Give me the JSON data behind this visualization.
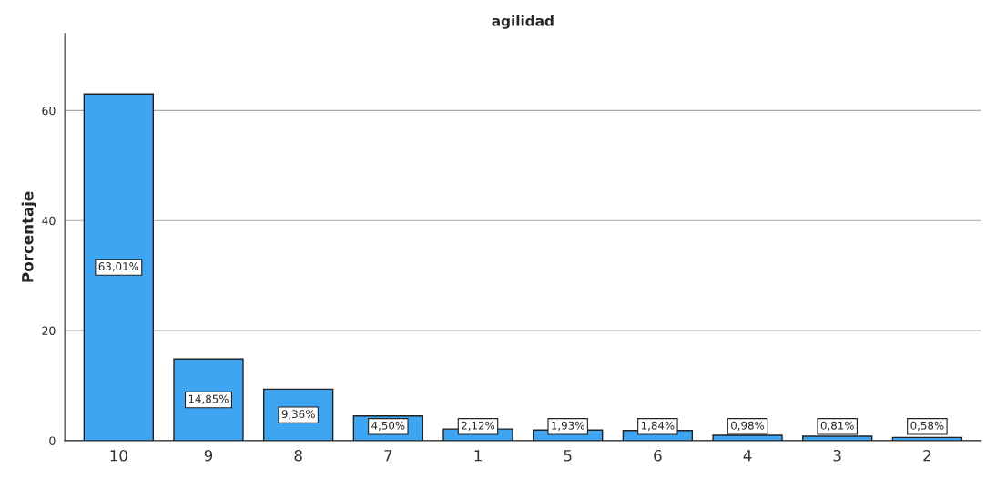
{
  "chart_data": {
    "type": "bar",
    "title": "agilidad",
    "ylabel": "Porcentaje",
    "categories": [
      "10",
      "9",
      "8",
      "7",
      "1",
      "5",
      "6",
      "4",
      "3",
      "2"
    ],
    "values": [
      63.01,
      14.85,
      9.36,
      4.5,
      2.12,
      1.93,
      1.84,
      0.98,
      0.81,
      0.58
    ],
    "value_labels": [
      "63,01%",
      "14,85%",
      "9,36%",
      "4,50%",
      "2,12%",
      "1,93%",
      "1,84%",
      "0,98%",
      "0,81%",
      "0,58%"
    ],
    "color": "#3ea5f2",
    "ylim": [
      0,
      74
    ],
    "yticks": [
      0,
      20,
      40,
      60
    ],
    "grid": "y"
  }
}
